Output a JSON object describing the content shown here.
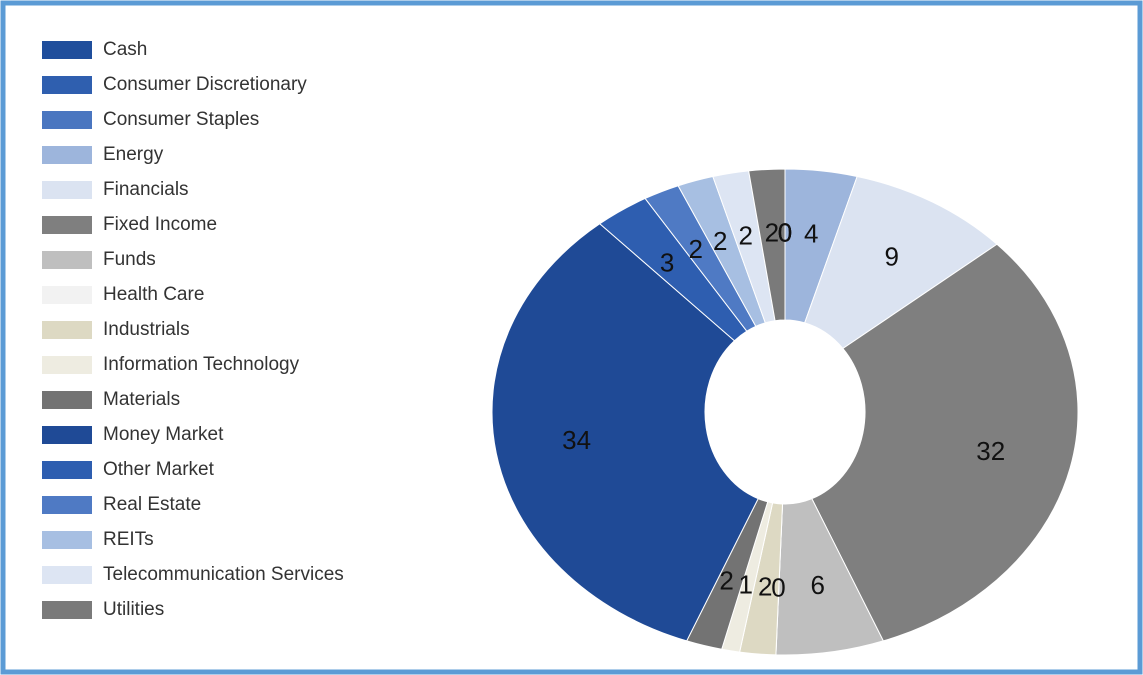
{
  "chart_data": {
    "type": "donut",
    "categories": [
      "Cash",
      "Consumer Discretionary",
      "Consumer Staples",
      "Energy",
      "Financials",
      "Fixed Income",
      "Funds",
      "Health Care",
      "Industrials",
      "Information  Technology",
      "Materials",
      "Money Market",
      "Other Market",
      "Real Estate",
      "REITs",
      "Telecommunication  Services",
      "Utilities"
    ],
    "values": [
      0,
      0,
      0,
      4,
      9,
      32,
      6,
      0,
      2,
      1,
      2,
      34,
      3,
      2,
      2,
      2,
      2
    ],
    "colors": [
      "#1f4e9c",
      "#2f5faf",
      "#4a76c0",
      "#9db5dc",
      "#dbe3f1",
      "#7f7f7f",
      "#bfbfbf",
      "#f2f2f2",
      "#ddd9c3",
      "#eeece1",
      "#737373",
      "#1f4a96",
      "#2e5eb0",
      "#4f7ac4",
      "#a7bfe2",
      "#dde5f3",
      "#7a7a7a"
    ],
    "legend": "left"
  }
}
